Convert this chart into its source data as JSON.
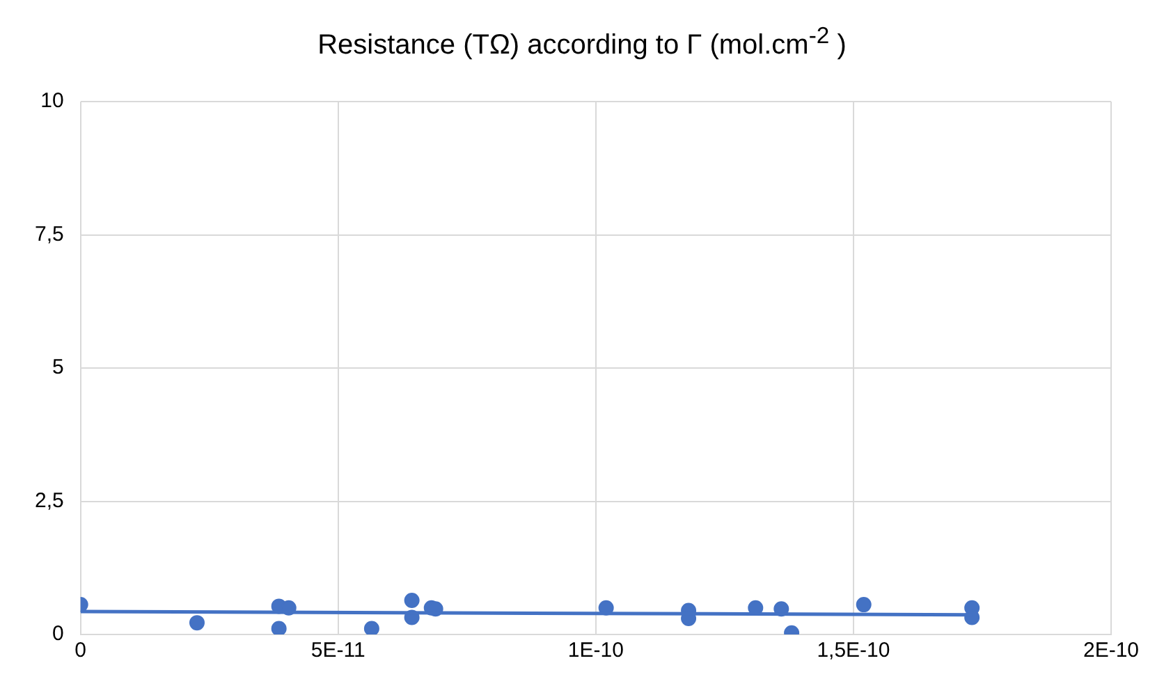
{
  "chart_data": {
    "type": "scatter",
    "title": "Resistance (TΩ) according to Γ (mol.cm$^{-2}$ )",
    "series": [
      {
        "marker": "circle",
        "color": "#4472c4",
        "x": [
          0,
          2.26e-11,
          3.85e-11,
          3.85e-11,
          4.04e-11,
          5.65e-11,
          6.43e-11,
          6.43e-11,
          6.81e-11,
          6.89e-11,
          1.02e-10,
          1.18e-10,
          1.18e-10,
          1.31e-10,
          1.36e-10,
          1.38e-10,
          1.52e-10,
          1.73e-10,
          1.73e-10
        ],
        "values": [
          0.56,
          0.22,
          0.53,
          0.11,
          0.5,
          0.11,
          0.64,
          0.32,
          0.5,
          0.48,
          0.5,
          0.45,
          0.3,
          0.5,
          0.48,
          0.03,
          0.56,
          0.5,
          0.32
        ]
      },
      {
        "type": "line",
        "color": "#4472c4",
        "x": [
          0,
          1.73e-10
        ],
        "values": [
          0.43,
          0.37
        ]
      }
    ],
    "xlim": [
      0,
      2e-10
    ],
    "xticks": [
      0,
      {
        "value": 5e-11,
        "label": "5E-11"
      },
      {
        "value": 1e-10,
        "label": "1E-10"
      },
      {
        "value": 1.5e-10,
        "label": "1,5E-10"
      },
      {
        "value": 2e-10,
        "label": "2E-10"
      }
    ],
    "ylim": [
      0,
      10
    ],
    "yticks": [
      0,
      {
        "value": 2.5,
        "label": "2,5"
      },
      5,
      {
        "value": 7.5,
        "label": "7,5"
      },
      10
    ],
    "grid": true,
    "legend": false
  }
}
